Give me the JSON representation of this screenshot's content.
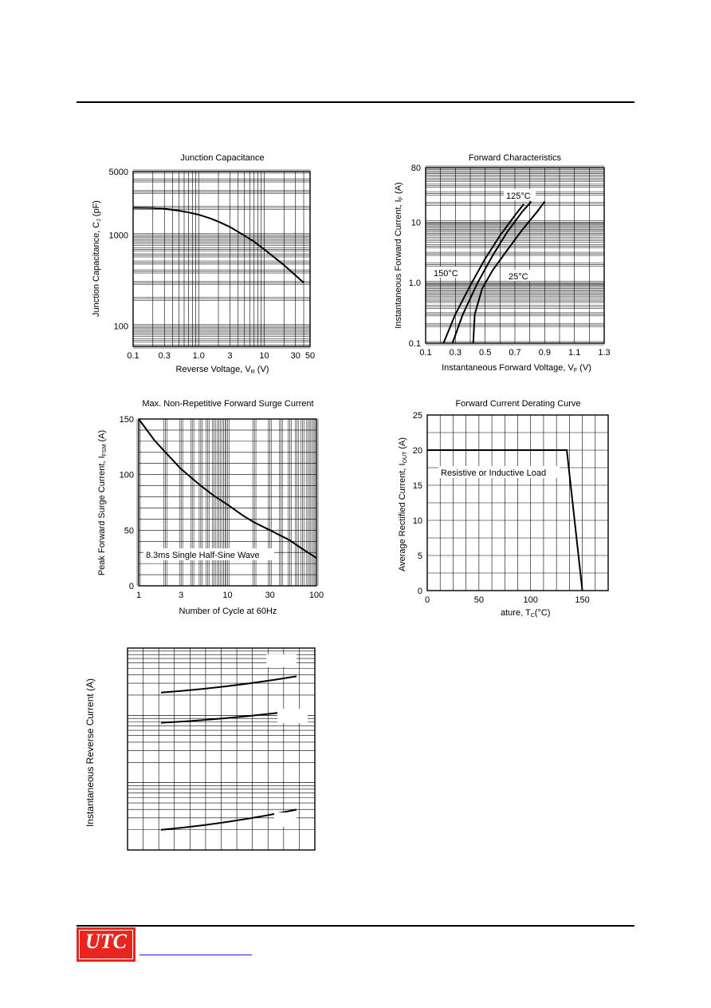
{
  "chart_data": [
    {
      "type": "line",
      "title": "Junction Capacitance",
      "xlabel_main": "Reverse Voltage, V",
      "xlabel_sub": "R",
      "xlabel_tail": " (V)",
      "ylabel_main": "Junction Capacitance, C",
      "ylabel_sub": "J",
      "ylabel_tail": " (pF)",
      "xscale": "log",
      "yscale": "log",
      "xlim": [
        0.1,
        50
      ],
      "ylim": [
        60,
        5000
      ],
      "xticks": [
        0.1,
        0.3,
        1.0,
        3,
        10,
        30,
        50
      ],
      "xtick_labels": [
        "0.1",
        "0.3",
        "1.0",
        "3",
        "10",
        "30",
        "50"
      ],
      "yticks": [
        100,
        1000,
        5000
      ],
      "ytick_labels": [
        "100",
        "1000",
        "5000"
      ],
      "grid": true,
      "series": [
        {
          "x": [
            0.1,
            0.2,
            0.3,
            0.5,
            0.7,
            1,
            1.5,
            2,
            3,
            5,
            7,
            10,
            20,
            40
          ],
          "y": [
            2000,
            1990,
            1950,
            1860,
            1780,
            1680,
            1530,
            1410,
            1230,
            990,
            850,
            700,
            470,
            300
          ]
        }
      ]
    },
    {
      "type": "line",
      "title": "Forward Characteristics",
      "xlabel_main": "Instantaneous Forward Voltage, V",
      "xlabel_sub": "F",
      "xlabel_tail": " (V)",
      "ylabel_main": "Instantaneous Forward Current, I",
      "ylabel_sub": "F",
      "ylabel_tail": " (A)",
      "xscale": "linear",
      "yscale": "log",
      "xlim": [
        0.1,
        1.3
      ],
      "ylim": [
        0.1,
        80
      ],
      "xticks": [
        0.1,
        0.3,
        0.5,
        0.7,
        0.9,
        1.1,
        1.3
      ],
      "xtick_labels": [
        "0.1",
        "0.3",
        "0.5",
        "0.7",
        "0.9",
        "1.1",
        "1.3"
      ],
      "yticks": [
        0.1,
        1.0,
        10,
        80
      ],
      "ytick_labels": [
        "0.1",
        "1.0",
        "10",
        "80"
      ],
      "grid": true,
      "annotations": [
        "150°C",
        "125°C",
        "25°C"
      ],
      "series": [
        {
          "name": "150°C",
          "x": [
            0.22,
            0.3,
            0.4,
            0.5,
            0.6,
            0.7,
            0.76
          ],
          "y": [
            0.1,
            0.3,
            0.9,
            2.5,
            6,
            13,
            20
          ]
        },
        {
          "name": "125°C",
          "x": [
            0.28,
            0.35,
            0.45,
            0.55,
            0.65,
            0.75,
            0.81
          ],
          "y": [
            0.1,
            0.3,
            1,
            2.8,
            7,
            15,
            22
          ]
        },
        {
          "name": "25°C",
          "x": [
            0.42,
            0.43,
            0.48,
            0.55,
            0.65,
            0.75,
            0.85,
            0.9
          ],
          "y": [
            0.1,
            0.3,
            0.8,
            1.6,
            3.5,
            7.5,
            15,
            22
          ]
        }
      ]
    },
    {
      "type": "line",
      "title": "Max. Non-Repetitive Forward Surge Current",
      "xlabel": "Number of Cycle at 60Hz",
      "ylabel_main": "Peak Forward Surge Current, I",
      "ylabel_sub": "FSM",
      "ylabel_tail": " (A)",
      "xscale": "log",
      "yscale": "linear",
      "xlim": [
        1,
        100
      ],
      "ylim": [
        0,
        150
      ],
      "xticks": [
        1,
        3,
        10,
        30,
        100
      ],
      "xtick_labels": [
        "1",
        "3",
        "10",
        "30",
        "100"
      ],
      "yticks": [
        0,
        50,
        100,
        150
      ],
      "ytick_labels": [
        "0",
        "50",
        "100",
        "150"
      ],
      "grid": true,
      "annotation": "8.3ms Single Half-Sine Wave",
      "series": [
        {
          "x": [
            1,
            1.5,
            2,
            3,
            5,
            7,
            10,
            15,
            20,
            30,
            50,
            70,
            100
          ],
          "y": [
            150,
            131,
            120,
            105,
            90,
            81,
            73,
            63,
            57,
            50,
            41,
            33,
            25
          ]
        }
      ]
    },
    {
      "type": "line",
      "title": "Forward Current Derating Curve",
      "xlabel_visible_part": "ature, T",
      "xlabel_sub": "C",
      "xlabel_tail": "(°C)",
      "ylabel_main": "Average Rectified Current, I",
      "ylabel_sub": "OUT",
      "ylabel_tail": " (A)",
      "xscale": "linear",
      "yscale": "linear",
      "xlim": [
        0,
        175
      ],
      "ylim": [
        0,
        25
      ],
      "xticks": [
        0,
        50,
        100,
        150
      ],
      "xtick_labels": [
        "0",
        "50",
        "100",
        "150"
      ],
      "yticks": [
        0,
        5,
        10,
        15,
        20,
        25
      ],
      "ytick_labels": [
        "0",
        "5",
        "10",
        "15",
        "20",
        "25"
      ],
      "grid": true,
      "annotation": "Resistive or Inductive Load",
      "series": [
        {
          "x": [
            0,
            135,
            150
          ],
          "y": [
            20,
            20,
            0
          ]
        }
      ]
    },
    {
      "type": "line",
      "title": "",
      "ylabel": "Instantaneous Reverse Current (A)",
      "xscale": "linear",
      "yscale": "log",
      "grid": true,
      "note": "x-axis, y-tick labels and legend are not visible in the image",
      "series": [
        {
          "x": [
            0,
            1
          ],
          "y": [
            0.78,
            0.86
          ]
        },
        {
          "x": [
            0,
            1
          ],
          "y": [
            0.63,
            0.69
          ]
        },
        {
          "x": [
            0,
            1
          ],
          "y": [
            0.1,
            0.2
          ]
        }
      ]
    }
  ],
  "footer": {
    "logo_text": "UTC",
    "logo_color": "#e8261f",
    "link_color": "#1a1aff"
  }
}
